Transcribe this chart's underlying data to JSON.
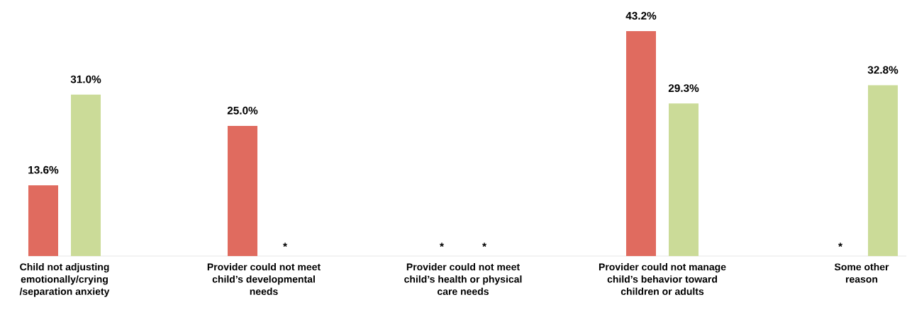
{
  "chart_data": {
    "type": "bar",
    "categories": [
      "Child not adjusting emotionally/crying /separation anxiety",
      "Provider could not meet child’s developmental needs",
      "Provider could not meet child’s health or physical care needs",
      "Provider could not manage child’s behavior toward children or adults",
      "Some other reason"
    ],
    "series": [
      {
        "color": "#e06b5f",
        "values": [
          13.6,
          25.0,
          null,
          43.2,
          null
        ],
        "value_labels": [
          "13.6%",
          "25.0%",
          "*",
          "43.2%",
          "*"
        ]
      },
      {
        "color": "#cbdb98",
        "values": [
          31.0,
          null,
          null,
          29.3,
          32.8
        ],
        "value_labels": [
          "31.0%",
          "*",
          "*",
          "29.3%",
          "32.8%"
        ]
      }
    ]
  }
}
